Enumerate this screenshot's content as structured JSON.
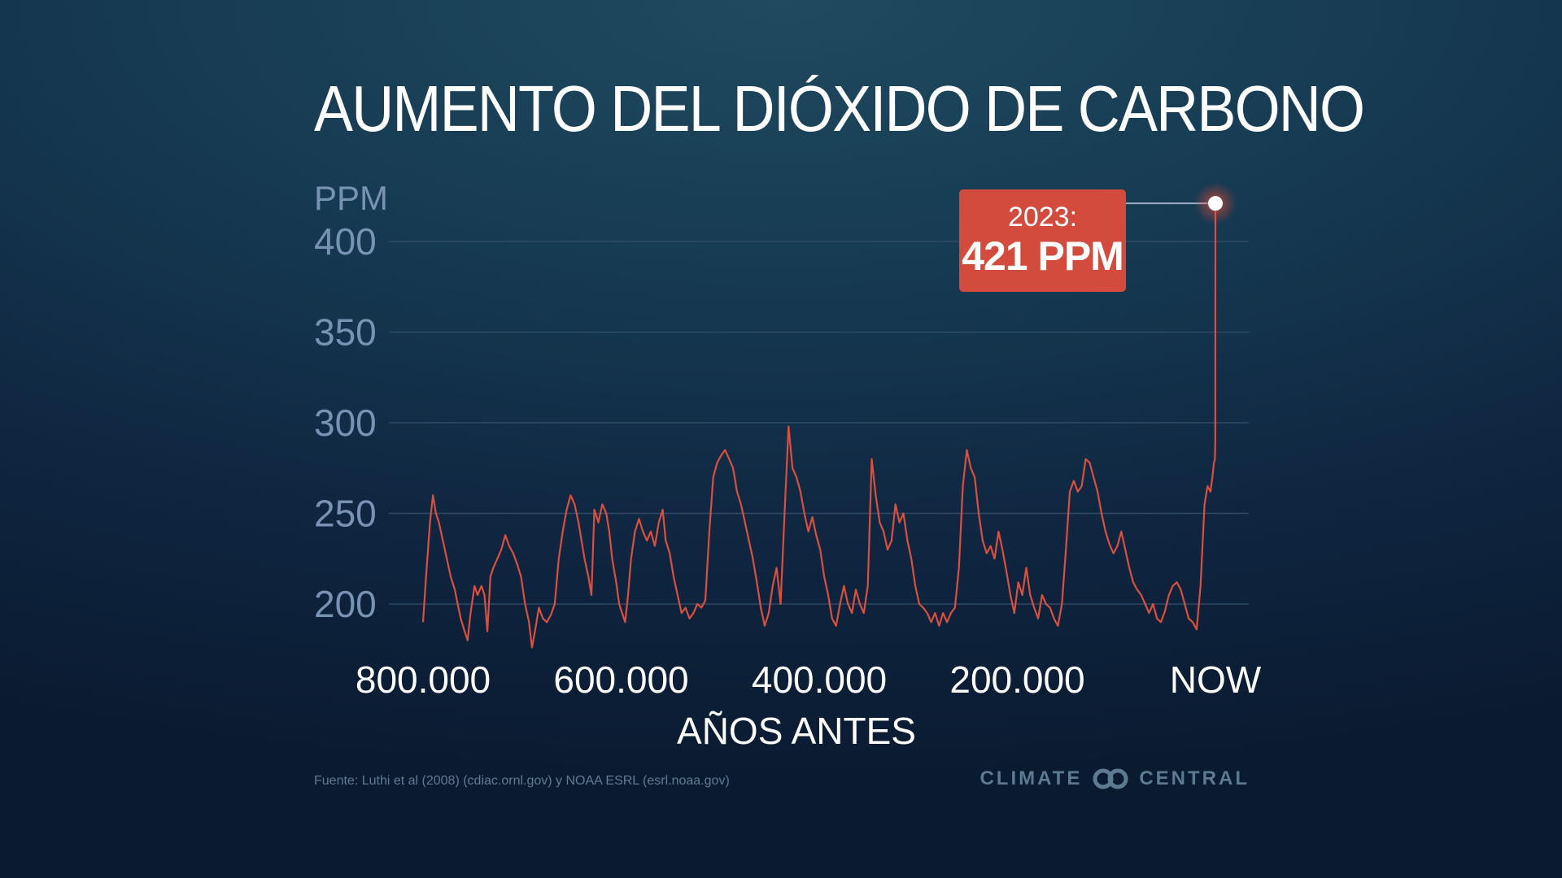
{
  "title": "AUMENTO DEL DIÓXIDO DE CARBONO",
  "source": "Fuente: Luthi et al (2008) (cdiac.ornl.gov) y NOAA ESRL (esrl.noaa.gov)",
  "logo": {
    "left_text": "CLIMATE",
    "right_text": "CENTRAL",
    "icon": "linked-rings-icon"
  },
  "callout": {
    "year": "2023:",
    "value": "421 PPM"
  },
  "colors": {
    "line": "#d9503f",
    "callout": "#d24b3c",
    "grid": "#2f4b66",
    "ytick": "#7892b4"
  },
  "chart_data": {
    "type": "line",
    "title": "AUMENTO DEL DIÓXIDO DE CARBONO",
    "ylabel": "PPM",
    "xlabel": "AÑOS ANTES",
    "x_ticks": [
      {
        "value": 800000,
        "label": "800.000"
      },
      {
        "value": 600000,
        "label": "600.000"
      },
      {
        "value": 400000,
        "label": "400.000"
      },
      {
        "value": 200000,
        "label": "200.000"
      },
      {
        "value": 0,
        "label": "NOW"
      }
    ],
    "y_ticks": [
      {
        "value": 200,
        "label": "200"
      },
      {
        "value": 250,
        "label": "250"
      },
      {
        "value": 300,
        "label": "300"
      },
      {
        "value": 350,
        "label": "350"
      },
      {
        "value": 400,
        "label": "400"
      }
    ],
    "xlim": [
      800000,
      0
    ],
    "x_reversed": true,
    "ylim": [
      180,
      421
    ],
    "grid": true,
    "annotation": {
      "x": 0,
      "y": 421,
      "text": "2023: 421 PPM"
    },
    "series": [
      {
        "points": [
          [
            800000,
            190
          ],
          [
            797000,
            215
          ],
          [
            793000,
            245
          ],
          [
            790000,
            260
          ],
          [
            787000,
            250
          ],
          [
            784000,
            245
          ],
          [
            780000,
            235
          ],
          [
            776000,
            225
          ],
          [
            772000,
            215
          ],
          [
            768000,
            208
          ],
          [
            765000,
            200
          ],
          [
            762000,
            192
          ],
          [
            758000,
            185
          ],
          [
            755000,
            180
          ],
          [
            752000,
            195
          ],
          [
            748000,
            210
          ],
          [
            745000,
            205
          ],
          [
            741000,
            210
          ],
          [
            738000,
            205
          ],
          [
            735000,
            185
          ],
          [
            732000,
            215
          ],
          [
            729000,
            220
          ],
          [
            725000,
            225
          ],
          [
            721000,
            230
          ],
          [
            717000,
            238
          ],
          [
            713000,
            232
          ],
          [
            709000,
            228
          ],
          [
            705000,
            222
          ],
          [
            701000,
            215
          ],
          [
            697000,
            200
          ],
          [
            693000,
            190
          ],
          [
            690000,
            176
          ],
          [
            687000,
            185
          ],
          [
            683000,
            198
          ],
          [
            679000,
            192
          ],
          [
            675000,
            190
          ],
          [
            671000,
            194
          ],
          [
            667000,
            200
          ],
          [
            663000,
            225
          ],
          [
            659000,
            240
          ],
          [
            655000,
            252
          ],
          [
            651000,
            260
          ],
          [
            647000,
            255
          ],
          [
            643000,
            245
          ],
          [
            640000,
            235
          ],
          [
            637000,
            225
          ],
          [
            633000,
            215
          ],
          [
            630000,
            205
          ],
          [
            627000,
            252
          ],
          [
            623000,
            245
          ],
          [
            619000,
            255
          ],
          [
            615000,
            250
          ],
          [
            612000,
            240
          ],
          [
            609000,
            225
          ],
          [
            605000,
            212
          ],
          [
            602000,
            200
          ],
          [
            599000,
            195
          ],
          [
            596000,
            190
          ],
          [
            593000,
            205
          ],
          [
            590000,
            225
          ],
          [
            586000,
            240
          ],
          [
            582000,
            247
          ],
          [
            578000,
            240
          ],
          [
            574000,
            235
          ],
          [
            570000,
            240
          ],
          [
            566000,
            232
          ],
          [
            562000,
            245
          ],
          [
            558000,
            252
          ],
          [
            555000,
            235
          ],
          [
            551000,
            228
          ],
          [
            547000,
            215
          ],
          [
            543000,
            205
          ],
          [
            539000,
            195
          ],
          [
            535000,
            198
          ],
          [
            531000,
            192
          ],
          [
            527000,
            195
          ],
          [
            523000,
            200
          ],
          [
            519000,
            198
          ],
          [
            515000,
            202
          ],
          [
            511000,
            240
          ],
          [
            507000,
            270
          ],
          [
            503000,
            278
          ],
          [
            499000,
            282
          ],
          [
            495000,
            285
          ],
          [
            491000,
            280
          ],
          [
            487000,
            275
          ],
          [
            483000,
            262
          ],
          [
            479000,
            255
          ],
          [
            475000,
            245
          ],
          [
            471000,
            235
          ],
          [
            467000,
            225
          ],
          [
            463000,
            212
          ],
          [
            459000,
            198
          ],
          [
            455000,
            188
          ],
          [
            451000,
            195
          ],
          [
            447000,
            210
          ],
          [
            443000,
            220
          ],
          [
            439000,
            200
          ],
          [
            435000,
            250
          ],
          [
            431000,
            298
          ],
          [
            427000,
            275
          ],
          [
            423000,
            270
          ],
          [
            419000,
            262
          ],
          [
            415000,
            250
          ],
          [
            411000,
            240
          ],
          [
            407000,
            248
          ],
          [
            403000,
            238
          ],
          [
            399000,
            230
          ],
          [
            395000,
            215
          ],
          [
            391000,
            205
          ],
          [
            387000,
            192
          ],
          [
            383000,
            188
          ],
          [
            379000,
            200
          ],
          [
            375000,
            210
          ],
          [
            371000,
            200
          ],
          [
            367000,
            195
          ],
          [
            363000,
            208
          ],
          [
            359000,
            200
          ],
          [
            355000,
            195
          ],
          [
            351000,
            210
          ],
          [
            347000,
            280
          ],
          [
            343000,
            260
          ],
          [
            339000,
            245
          ],
          [
            335000,
            240
          ],
          [
            331000,
            230
          ],
          [
            327000,
            235
          ],
          [
            323000,
            255
          ],
          [
            319000,
            245
          ],
          [
            315000,
            250
          ],
          [
            311000,
            235
          ],
          [
            307000,
            225
          ],
          [
            303000,
            210
          ],
          [
            299000,
            200
          ],
          [
            295000,
            198
          ],
          [
            291000,
            195
          ],
          [
            287000,
            190
          ],
          [
            283000,
            195
          ],
          [
            279000,
            188
          ],
          [
            275000,
            195
          ],
          [
            271000,
            190
          ],
          [
            267000,
            195
          ],
          [
            263000,
            198
          ],
          [
            259000,
            220
          ],
          [
            255000,
            265
          ],
          [
            251000,
            285
          ],
          [
            247000,
            275
          ],
          [
            243000,
            270
          ],
          [
            239000,
            250
          ],
          [
            235000,
            235
          ],
          [
            231000,
            228
          ],
          [
            227000,
            232
          ],
          [
            223000,
            225
          ],
          [
            219000,
            240
          ],
          [
            215000,
            230
          ],
          [
            211000,
            218
          ],
          [
            207000,
            205
          ],
          [
            203000,
            195
          ],
          [
            199000,
            212
          ],
          [
            195000,
            205
          ],
          [
            191000,
            220
          ],
          [
            187000,
            205
          ],
          [
            183000,
            198
          ],
          [
            179000,
            192
          ],
          [
            175000,
            205
          ],
          [
            171000,
            200
          ],
          [
            167000,
            198
          ],
          [
            163000,
            192
          ],
          [
            159000,
            188
          ],
          [
            155000,
            200
          ],
          [
            151000,
            230
          ],
          [
            147000,
            262
          ],
          [
            143000,
            268
          ],
          [
            139000,
            262
          ],
          [
            135000,
            265
          ],
          [
            131000,
            280
          ],
          [
            127000,
            278
          ],
          [
            123000,
            270
          ],
          [
            119000,
            262
          ],
          [
            115000,
            250
          ],
          [
            111000,
            240
          ],
          [
            107000,
            233
          ],
          [
            103000,
            228
          ],
          [
            99000,
            232
          ],
          [
            95000,
            240
          ],
          [
            91000,
            230
          ],
          [
            87000,
            220
          ],
          [
            83000,
            212
          ],
          [
            79000,
            208
          ],
          [
            75000,
            205
          ],
          [
            71000,
            200
          ],
          [
            67000,
            195
          ],
          [
            63000,
            200
          ],
          [
            59000,
            192
          ],
          [
            55000,
            190
          ],
          [
            51000,
            196
          ],
          [
            47000,
            205
          ],
          [
            43000,
            210
          ],
          [
            39000,
            212
          ],
          [
            35000,
            208
          ],
          [
            31000,
            200
          ],
          [
            27000,
            192
          ],
          [
            23000,
            190
          ],
          [
            19000,
            186
          ],
          [
            15000,
            210
          ],
          [
            11000,
            255
          ],
          [
            8000,
            265
          ],
          [
            5000,
            262
          ],
          [
            3000,
            270
          ],
          [
            1500,
            278
          ],
          [
            500,
            280
          ],
          [
            200,
            290
          ],
          [
            0,
            421
          ]
        ]
      }
    ]
  }
}
